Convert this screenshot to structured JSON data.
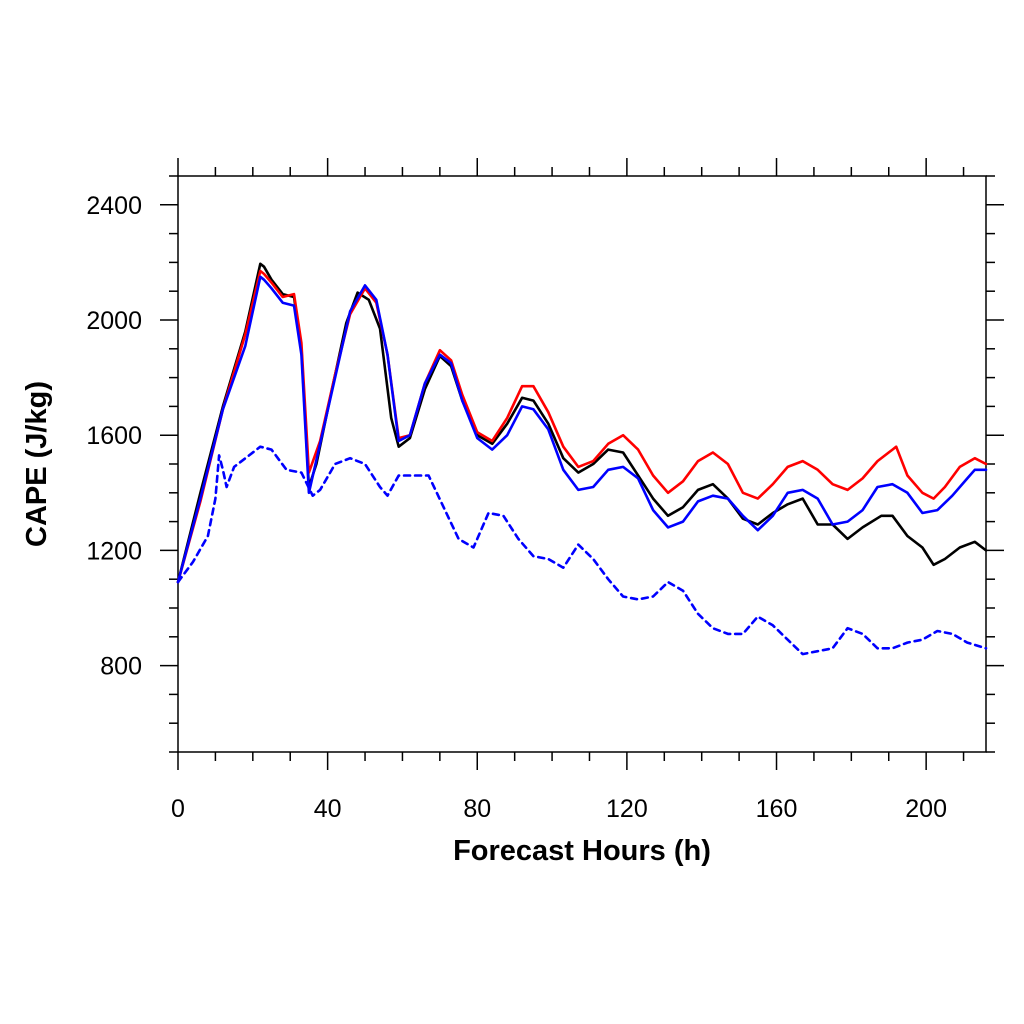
{
  "chart_data": {
    "type": "line",
    "title": "",
    "xlabel": "Forecast Hours (h)",
    "ylabel": "CAPE (J/kg)",
    "xlim": [
      0,
      216
    ],
    "ylim": [
      500,
      2500
    ],
    "x_ticks": [
      0,
      40,
      80,
      120,
      160,
      200
    ],
    "y_ticks": [
      800,
      1200,
      1600,
      2000,
      2400
    ],
    "grid": false,
    "legend": "none",
    "series": [
      {
        "color": "#000000",
        "style": "solid",
        "points": [
          [
            0,
            1090
          ],
          [
            6,
            1400
          ],
          [
            12,
            1700
          ],
          [
            18,
            1960
          ],
          [
            22,
            2195
          ],
          [
            23,
            2185
          ],
          [
            25,
            2140
          ],
          [
            28,
            2090
          ],
          [
            31,
            2080
          ],
          [
            33,
            1900
          ],
          [
            35,
            1420
          ],
          [
            37,
            1500
          ],
          [
            41,
            1750
          ],
          [
            45,
            1990
          ],
          [
            48,
            2095
          ],
          [
            51,
            2070
          ],
          [
            54,
            1970
          ],
          [
            57,
            1660
          ],
          [
            59,
            1560
          ],
          [
            62,
            1590
          ],
          [
            66,
            1760
          ],
          [
            70,
            1875
          ],
          [
            73,
            1840
          ],
          [
            76,
            1720
          ],
          [
            80,
            1600
          ],
          [
            84,
            1570
          ],
          [
            88,
            1640
          ],
          [
            92,
            1730
          ],
          [
            95,
            1720
          ],
          [
            99,
            1640
          ],
          [
            103,
            1520
          ],
          [
            107,
            1470
          ],
          [
            111,
            1500
          ],
          [
            115,
            1550
          ],
          [
            119,
            1540
          ],
          [
            123,
            1460
          ],
          [
            127,
            1380
          ],
          [
            131,
            1320
          ],
          [
            135,
            1350
          ],
          [
            139,
            1410
          ],
          [
            143,
            1430
          ],
          [
            147,
            1380
          ],
          [
            151,
            1310
          ],
          [
            155,
            1290
          ],
          [
            159,
            1330
          ],
          [
            163,
            1360
          ],
          [
            167,
            1380
          ],
          [
            171,
            1290
          ],
          [
            175,
            1290
          ],
          [
            179,
            1240
          ],
          [
            183,
            1280
          ],
          [
            188,
            1320
          ],
          [
            191,
            1320
          ],
          [
            195,
            1250
          ],
          [
            199,
            1210
          ],
          [
            202,
            1150
          ],
          [
            205,
            1170
          ],
          [
            209,
            1210
          ],
          [
            213,
            1230
          ],
          [
            216,
            1200
          ]
        ]
      },
      {
        "color": "#ff0000",
        "style": "solid",
        "points": [
          [
            0,
            1090
          ],
          [
            6,
            1370
          ],
          [
            12,
            1690
          ],
          [
            18,
            1950
          ],
          [
            22,
            2170
          ],
          [
            23,
            2160
          ],
          [
            25,
            2130
          ],
          [
            28,
            2080
          ],
          [
            31,
            2090
          ],
          [
            33,
            1920
          ],
          [
            35,
            1470
          ],
          [
            38,
            1580
          ],
          [
            42,
            1810
          ],
          [
            46,
            2020
          ],
          [
            50,
            2110
          ],
          [
            53,
            2060
          ],
          [
            56,
            1880
          ],
          [
            59,
            1590
          ],
          [
            62,
            1600
          ],
          [
            66,
            1780
          ],
          [
            70,
            1895
          ],
          [
            73,
            1860
          ],
          [
            76,
            1740
          ],
          [
            80,
            1610
          ],
          [
            84,
            1580
          ],
          [
            88,
            1660
          ],
          [
            92,
            1770
          ],
          [
            95,
            1770
          ],
          [
            99,
            1680
          ],
          [
            103,
            1560
          ],
          [
            107,
            1490
          ],
          [
            111,
            1510
          ],
          [
            115,
            1570
          ],
          [
            119,
            1600
          ],
          [
            123,
            1550
          ],
          [
            127,
            1460
          ],
          [
            131,
            1400
          ],
          [
            135,
            1440
          ],
          [
            139,
            1510
          ],
          [
            143,
            1540
          ],
          [
            147,
            1500
          ],
          [
            151,
            1400
          ],
          [
            155,
            1380
          ],
          [
            159,
            1430
          ],
          [
            163,
            1490
          ],
          [
            167,
            1510
          ],
          [
            171,
            1480
          ],
          [
            175,
            1430
          ],
          [
            179,
            1410
          ],
          [
            183,
            1450
          ],
          [
            187,
            1510
          ],
          [
            191,
            1550
          ],
          [
            192,
            1560
          ],
          [
            195,
            1460
          ],
          [
            199,
            1400
          ],
          [
            202,
            1380
          ],
          [
            205,
            1420
          ],
          [
            209,
            1490
          ],
          [
            213,
            1520
          ],
          [
            216,
            1500
          ]
        ]
      },
      {
        "color": "#0000ff",
        "style": "solid",
        "points": [
          [
            0,
            1090
          ],
          [
            6,
            1380
          ],
          [
            12,
            1690
          ],
          [
            18,
            1910
          ],
          [
            22,
            2150
          ],
          [
            23,
            2140
          ],
          [
            25,
            2110
          ],
          [
            28,
            2060
          ],
          [
            31,
            2050
          ],
          [
            33,
            1880
          ],
          [
            35,
            1400
          ],
          [
            38,
            1570
          ],
          [
            42,
            1800
          ],
          [
            46,
            2030
          ],
          [
            50,
            2120
          ],
          [
            53,
            2070
          ],
          [
            56,
            1880
          ],
          [
            59,
            1580
          ],
          [
            62,
            1600
          ],
          [
            66,
            1780
          ],
          [
            70,
            1880
          ],
          [
            73,
            1850
          ],
          [
            76,
            1720
          ],
          [
            80,
            1590
          ],
          [
            84,
            1550
          ],
          [
            88,
            1600
          ],
          [
            92,
            1700
          ],
          [
            95,
            1690
          ],
          [
            99,
            1620
          ],
          [
            103,
            1480
          ],
          [
            107,
            1410
          ],
          [
            111,
            1420
          ],
          [
            115,
            1480
          ],
          [
            119,
            1490
          ],
          [
            123,
            1450
          ],
          [
            127,
            1340
          ],
          [
            131,
            1280
          ],
          [
            135,
            1300
          ],
          [
            139,
            1370
          ],
          [
            143,
            1390
          ],
          [
            147,
            1380
          ],
          [
            151,
            1320
          ],
          [
            155,
            1270
          ],
          [
            159,
            1320
          ],
          [
            163,
            1400
          ],
          [
            167,
            1410
          ],
          [
            171,
            1380
          ],
          [
            175,
            1290
          ],
          [
            179,
            1300
          ],
          [
            183,
            1340
          ],
          [
            187,
            1420
          ],
          [
            191,
            1430
          ],
          [
            195,
            1400
          ],
          [
            199,
            1330
          ],
          [
            203,
            1340
          ],
          [
            207,
            1390
          ],
          [
            211,
            1450
          ],
          [
            213,
            1480
          ],
          [
            216,
            1480
          ]
        ]
      },
      {
        "color": "#0000ff",
        "style": "dashed",
        "points": [
          [
            0,
            1090
          ],
          [
            4,
            1160
          ],
          [
            8,
            1250
          ],
          [
            10,
            1380
          ],
          [
            11,
            1530
          ],
          [
            12,
            1480
          ],
          [
            13,
            1420
          ],
          [
            15,
            1490
          ],
          [
            19,
            1530
          ],
          [
            22,
            1560
          ],
          [
            25,
            1550
          ],
          [
            29,
            1480
          ],
          [
            33,
            1470
          ],
          [
            36,
            1390
          ],
          [
            38,
            1410
          ],
          [
            42,
            1500
          ],
          [
            46,
            1520
          ],
          [
            50,
            1500
          ],
          [
            54,
            1420
          ],
          [
            56,
            1390
          ],
          [
            59,
            1460
          ],
          [
            63,
            1460
          ],
          [
            67,
            1460
          ],
          [
            71,
            1350
          ],
          [
            75,
            1240
          ],
          [
            79,
            1210
          ],
          [
            83,
            1330
          ],
          [
            87,
            1320
          ],
          [
            91,
            1240
          ],
          [
            95,
            1180
          ],
          [
            99,
            1170
          ],
          [
            103,
            1140
          ],
          [
            107,
            1220
          ],
          [
            111,
            1170
          ],
          [
            115,
            1100
          ],
          [
            119,
            1040
          ],
          [
            123,
            1030
          ],
          [
            127,
            1040
          ],
          [
            131,
            1090
          ],
          [
            135,
            1060
          ],
          [
            139,
            980
          ],
          [
            143,
            930
          ],
          [
            147,
            910
          ],
          [
            151,
            910
          ],
          [
            155,
            970
          ],
          [
            159,
            940
          ],
          [
            163,
            890
          ],
          [
            167,
            840
          ],
          [
            171,
            850
          ],
          [
            175,
            860
          ],
          [
            179,
            930
          ],
          [
            183,
            910
          ],
          [
            187,
            860
          ],
          [
            191,
            860
          ],
          [
            195,
            880
          ],
          [
            199,
            890
          ],
          [
            203,
            920
          ],
          [
            207,
            910
          ],
          [
            211,
            880
          ],
          [
            216,
            860
          ]
        ]
      }
    ]
  }
}
